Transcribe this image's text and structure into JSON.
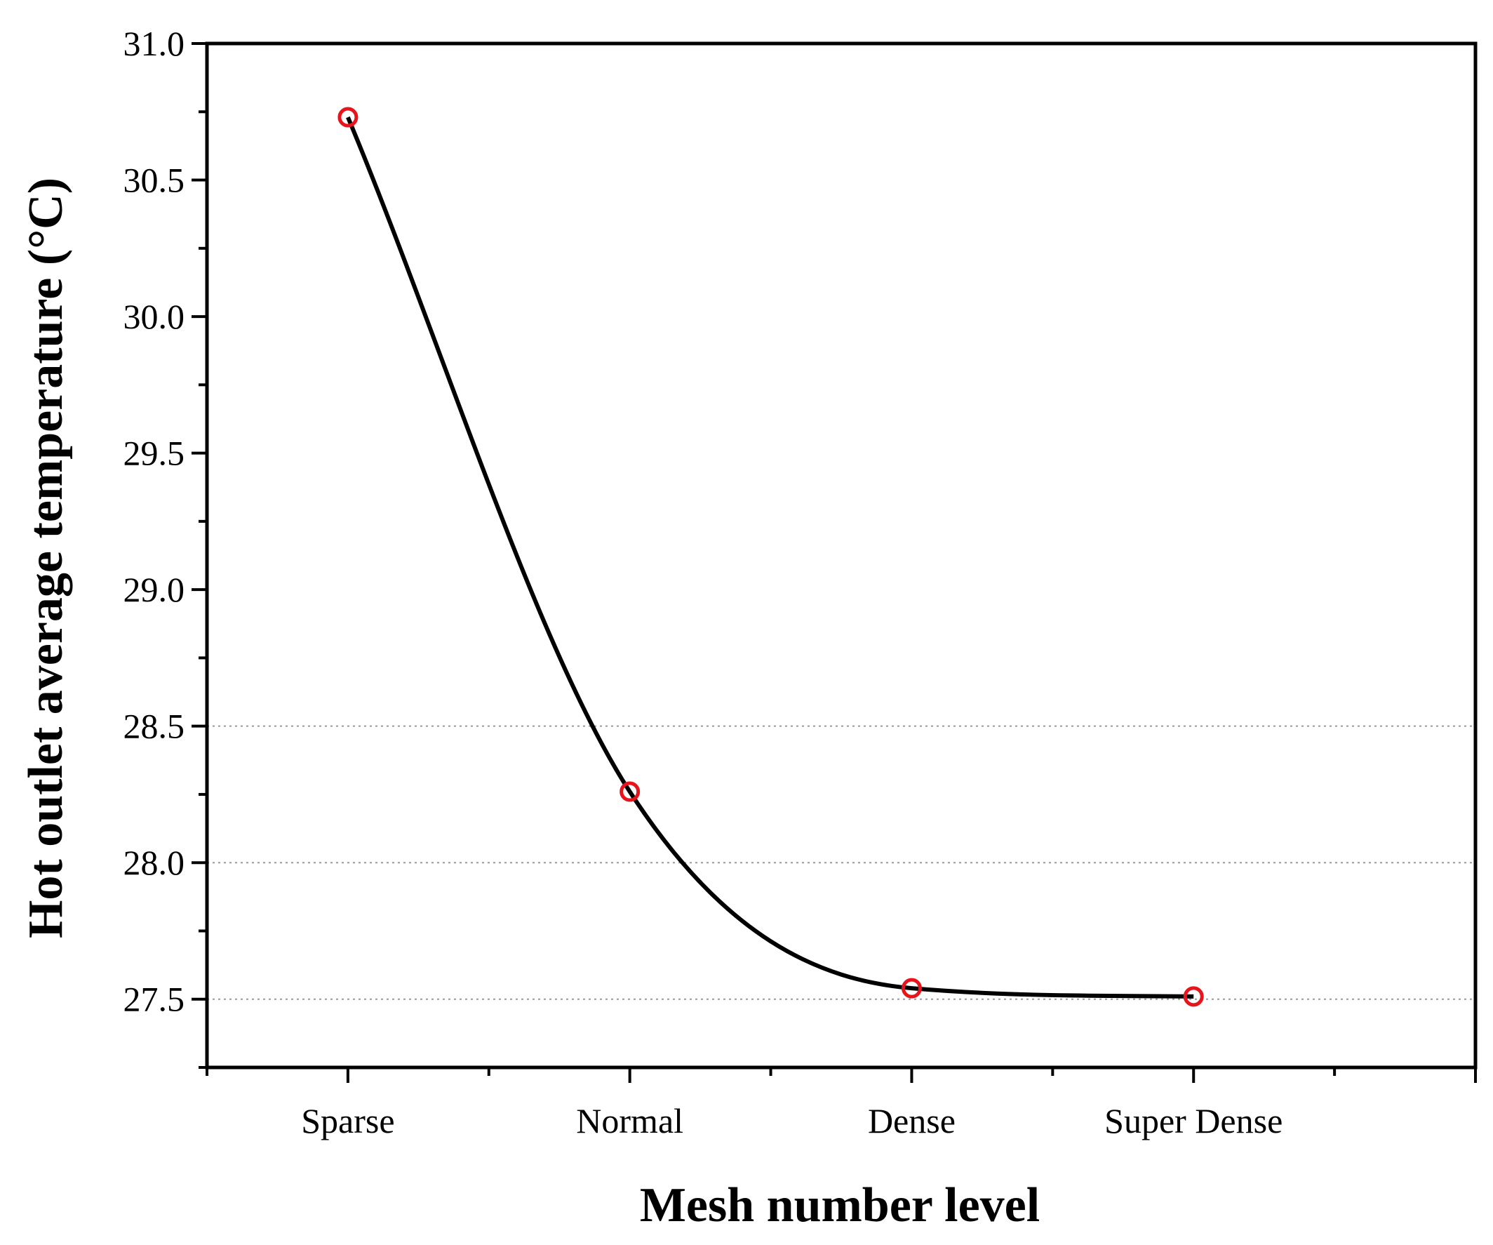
{
  "chart_data": {
    "type": "line",
    "title": "",
    "xlabel": "Mesh number level",
    "ylabel": "Hot outlet average temperature (°C)",
    "categories": [
      "Sparse",
      "Normal",
      "Dense",
      "Super Dense"
    ],
    "series": [
      {
        "name": "Hot outlet average temperature",
        "values": [
          30.73,
          28.26,
          27.54,
          27.51
        ],
        "line_color": "#000000",
        "marker": "open-circle",
        "marker_color": "#e8141c",
        "smooth": true
      }
    ],
    "ylim": [
      27.25,
      31.0
    ],
    "yticks": [
      27.5,
      28.0,
      28.5,
      29.0,
      29.5,
      30.0,
      30.5,
      31.0
    ],
    "ytick_labels": [
      "27.5",
      "28.0",
      "28.5",
      "29.0",
      "29.5",
      "30.0",
      "30.5",
      "31.0"
    ],
    "reference_lines": [
      27.5,
      28.0,
      28.5
    ],
    "grid": false,
    "legend": "none"
  }
}
